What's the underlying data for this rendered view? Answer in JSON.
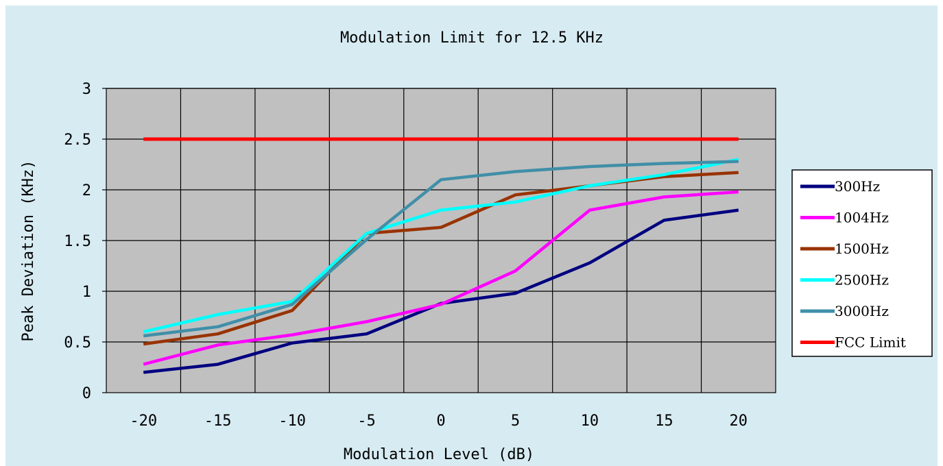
{
  "chart_data": {
    "type": "line",
    "title": "Modulation Limit for 12.5 KHz",
    "xlabel": "Modulation Level (dB)",
    "ylabel": "Peak Deviation (KHz)",
    "x": [
      -20,
      -15,
      -10,
      -5,
      0,
      5,
      10,
      15,
      20
    ],
    "x_ticks": [
      "-20",
      "-15",
      "-10",
      "-5",
      "0",
      "5",
      "10",
      "15",
      "20"
    ],
    "y_ticks": [
      "0",
      "0.5",
      "1",
      "1.5",
      "2",
      "2.5",
      "3"
    ],
    "ylim": [
      0,
      3
    ],
    "grid": true,
    "legend_position": "right",
    "plot_background": "#c0c0c0",
    "page_background": "#d7ebf2",
    "series": [
      {
        "name": "300Hz",
        "color": "#000080",
        "values": [
          0.2,
          0.28,
          0.49,
          0.58,
          0.88,
          0.98,
          1.28,
          1.7,
          1.8
        ]
      },
      {
        "name": "1004Hz",
        "color": "#ff00ff",
        "values": [
          0.28,
          0.47,
          0.57,
          0.7,
          0.87,
          1.2,
          1.8,
          1.93,
          1.98
        ]
      },
      {
        "name": "1500Hz",
        "color": "#993300",
        "values": [
          0.48,
          0.58,
          0.81,
          1.57,
          1.63,
          1.95,
          2.04,
          2.13,
          2.17
        ]
      },
      {
        "name": "2500Hz",
        "color": "#00ffff",
        "values": [
          0.6,
          0.77,
          0.9,
          1.57,
          1.8,
          1.88,
          2.04,
          2.15,
          2.3
        ]
      },
      {
        "name": "3000Hz",
        "color": "#408fa8",
        "values": [
          0.56,
          0.65,
          0.87,
          1.51,
          2.1,
          2.18,
          2.23,
          2.26,
          2.28
        ]
      },
      {
        "name": "FCC Limit",
        "color": "#ff0000",
        "values": [
          2.5,
          2.5,
          2.5,
          2.5,
          2.5,
          2.5,
          2.5,
          2.5,
          2.5
        ]
      }
    ]
  }
}
